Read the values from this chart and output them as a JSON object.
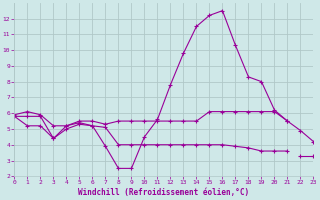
{
  "title": "",
  "xlabel": "Windchill (Refroidissement éolien,°C)",
  "background_color": "#cfe8e8",
  "grid_color": "#b0c8c8",
  "line_color": "#990099",
  "x_values": [
    0,
    1,
    2,
    3,
    4,
    5,
    6,
    7,
    8,
    9,
    10,
    11,
    12,
    13,
    14,
    15,
    16,
    17,
    18,
    19,
    20,
    21,
    22,
    23
  ],
  "series": {
    "line1_upper": [
      5.9,
      6.1,
      5.9,
      5.2,
      5.2,
      5.5,
      5.5,
      5.3,
      5.5,
      5.5,
      5.5,
      5.5,
      5.5,
      5.5,
      5.5,
      6.1,
      6.1,
      6.1,
      6.1,
      6.1,
      6.1,
      5.5,
      null,
      null
    ],
    "line2_main": [
      5.8,
      5.8,
      5.8,
      4.4,
      5.2,
      5.4,
      5.2,
      3.9,
      2.5,
      2.5,
      4.5,
      5.6,
      7.8,
      9.8,
      11.5,
      12.2,
      12.5,
      10.3,
      8.3,
      8.0,
      6.2,
      5.5,
      4.9,
      4.2
    ],
    "line3_mid": [
      5.8,
      5.2,
      5.2,
      4.4,
      5.0,
      5.3,
      5.2,
      5.1,
      4.0,
      4.0,
      4.0,
      4.0,
      4.0,
      4.0,
      4.0,
      4.0,
      4.0,
      3.9,
      3.8,
      3.6,
      3.6,
      3.6,
      null,
      null
    ],
    "line4_lower": [
      null,
      null,
      null,
      null,
      null,
      null,
      null,
      null,
      null,
      null,
      null,
      null,
      null,
      null,
      null,
      null,
      null,
      null,
      null,
      null,
      null,
      null,
      3.3,
      3.3
    ]
  },
  "ylim": [
    2,
    13
  ],
  "xlim": [
    0,
    23
  ],
  "yticks": [
    2,
    3,
    4,
    5,
    6,
    7,
    8,
    9,
    10,
    11,
    12
  ],
  "xticks": [
    0,
    1,
    2,
    3,
    4,
    5,
    6,
    7,
    8,
    9,
    10,
    11,
    12,
    13,
    14,
    15,
    16,
    17,
    18,
    19,
    20,
    21,
    22,
    23
  ]
}
